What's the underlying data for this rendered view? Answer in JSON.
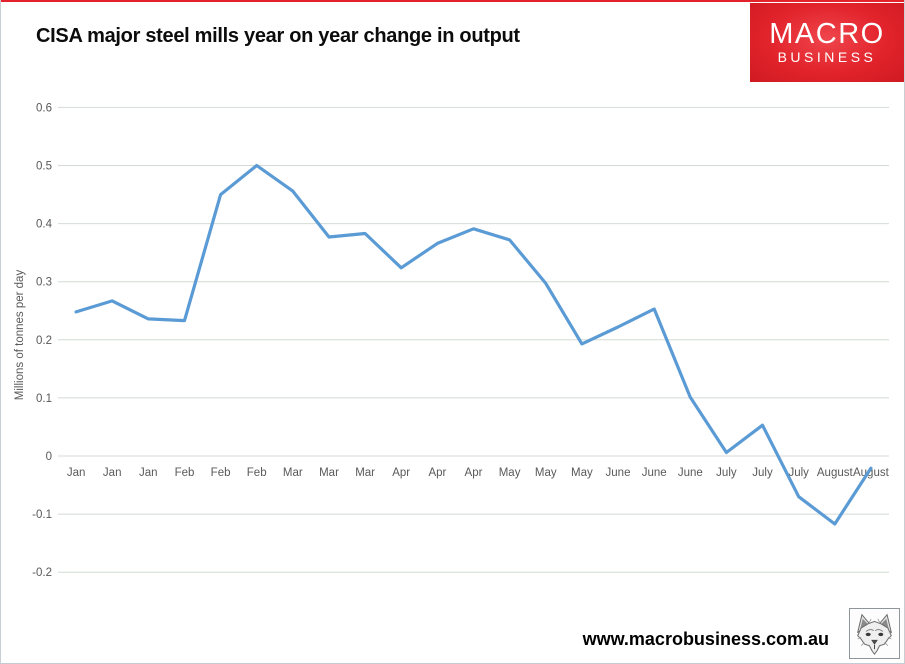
{
  "page": {
    "footer_url": "www.macrobusiness.com.au"
  },
  "logo": {
    "line1": "MACRO",
    "line2": "BUSINESS"
  },
  "icons": {
    "wolf": "wolf-head-sketch-icon"
  },
  "colors": {
    "accent_red": "#e2232b",
    "accent_red_light": "#ef454c",
    "accent_red_dark": "#cf1a22",
    "line_blue": "#5B9BD5",
    "gridline": "#d4dbd4",
    "axis_text": "#595959"
  },
  "chart_data": {
    "type": "line",
    "title": "CISA major steel mills year on year change in output",
    "xlabel": "",
    "ylabel": "Millions of tonnes per day",
    "ylim": [
      -0.2,
      0.6
    ],
    "yticks": [
      0.6,
      0.5,
      0.4,
      0.3,
      0.2,
      0.1,
      0,
      -0.1,
      -0.2
    ],
    "ytick_labels": [
      "0.6",
      "0.5",
      "0.4",
      "0.3",
      "0.2",
      "0.1",
      "0",
      "-0.1",
      "-0.2"
    ],
    "grid": true,
    "legend": false,
    "categories": [
      "Jan",
      "Jan",
      "Jan",
      "Feb",
      "Feb",
      "Feb",
      "Mar",
      "Mar",
      "Mar",
      "Apr",
      "Apr",
      "Apr",
      "May",
      "May",
      "May",
      "June",
      "June",
      "June",
      "July",
      "July",
      "July",
      "August",
      "August"
    ],
    "series": [
      {
        "name": "CISA major steel mills yoy change in output",
        "values": [
          0.248,
          0.267,
          0.236,
          0.233,
          0.45,
          0.5,
          0.456,
          0.377,
          0.383,
          0.324,
          0.366,
          0.391,
          0.372,
          0.297,
          0.193,
          0.222,
          0.253,
          0.101,
          0.006,
          0.053,
          -0.07,
          -0.117,
          -0.021
        ]
      }
    ]
  }
}
